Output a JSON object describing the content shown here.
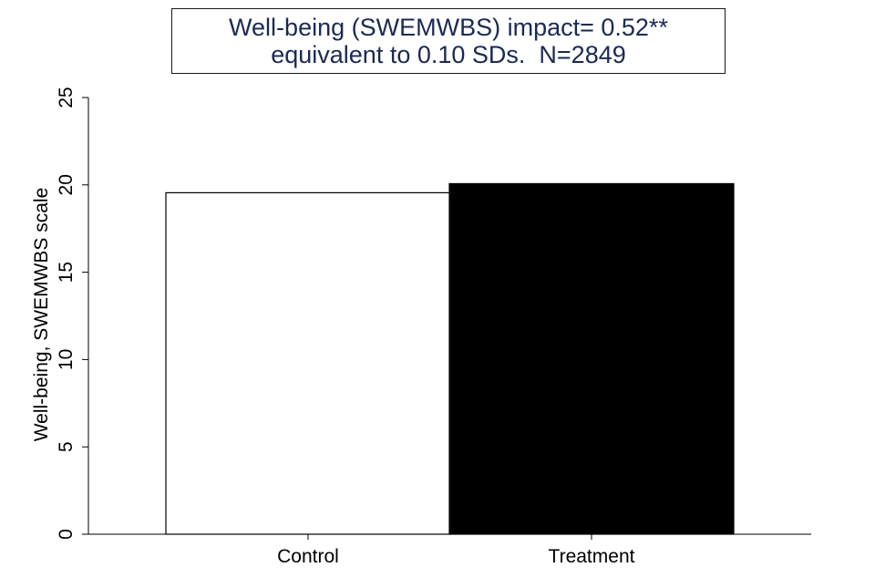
{
  "chart_data": {
    "type": "bar",
    "title_lines": [
      "Well-being (SWEMWBS) impact= 0.52**",
      "equivalent to 0.10 SDs.  N=2849"
    ],
    "categories": [
      "Control",
      "Treatment"
    ],
    "values": [
      19.55,
      20.07
    ],
    "bar_colors": [
      "#ffffff",
      "#000000"
    ],
    "ylabel": "Well-being, SWEMWBS scale",
    "xlabel": "",
    "ylim": [
      0,
      25
    ],
    "yticks": [
      "0",
      "5",
      "10",
      "15",
      "20",
      "25"
    ],
    "grid": false
  }
}
